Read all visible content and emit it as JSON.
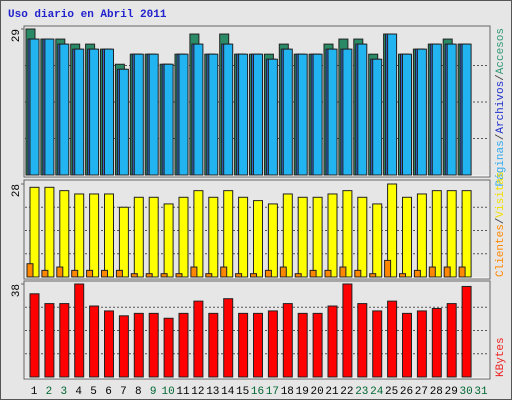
{
  "chart_data": {
    "type": "bar",
    "title": "Uso diario en Abril 2011",
    "legend_separator": "/",
    "categories": [
      "1",
      "2",
      "3",
      "4",
      "5",
      "6",
      "7",
      "8",
      "9",
      "10",
      "11",
      "12",
      "13",
      "14",
      "15",
      "16",
      "17",
      "18",
      "19",
      "20",
      "21",
      "22",
      "23",
      "24",
      "25",
      "26",
      "27",
      "28",
      "29",
      "30",
      "31"
    ],
    "category_colors": [
      "#000000",
      "#006633",
      "#006633",
      "#000000",
      "#000000",
      "#000000",
      "#000000",
      "#000000",
      "#006633",
      "#006633",
      "#000000",
      "#000000",
      "#000000",
      "#000000",
      "#000000",
      "#006633",
      "#006633",
      "#000000",
      "#000000",
      "#000000",
      "#000000",
      "#000000",
      "#006633",
      "#006633",
      "#000000",
      "#000000",
      "#000000",
      "#000000",
      "#000000",
      "#006633",
      "#006633"
    ],
    "panels": [
      {
        "ylim": [
          0,
          29
        ],
        "yticks": [
          29
        ],
        "series": [
          {
            "name": "Páginas",
            "color": "#22b4f0",
            "label_color": "#33aaee",
            "values": [
              27,
              27,
              26,
              25,
              25,
              25,
              21,
              24,
              24,
              22,
              24,
              26,
              24,
              26,
              24,
              24,
              23,
              25,
              24,
              24,
              25,
              25,
              26,
              23,
              28,
              24,
              25,
              26,
              26,
              26,
              null
            ]
          },
          {
            "name": "Archivos",
            "color": "#3066d0",
            "label_color": "#2233cc",
            "values": [
              27,
              27,
              26,
              25,
              25,
              25,
              21,
              24,
              24,
              22,
              24,
              26,
              24,
              26,
              24,
              24,
              23,
              25,
              24,
              24,
              25,
              25,
              26,
              23,
              28,
              24,
              25,
              26,
              26,
              26,
              null
            ]
          },
          {
            "name": "Accesos",
            "color": "#2a8a66",
            "label_color": "#339977",
            "values": [
              29,
              27,
              27,
              26,
              26,
              25,
              22,
              24,
              24,
              22,
              24,
              28,
              24,
              28,
              24,
              24,
              24,
              26,
              24,
              24,
              26,
              27,
              27,
              24,
              28,
              24,
              25,
              26,
              27,
              26,
              null
            ]
          }
        ]
      },
      {
        "ylim": [
          0,
          28
        ],
        "yticks": [
          28
        ],
        "series": [
          {
            "name": "Clientes",
            "color": "#ff8800",
            "label_color": "#ff8800",
            "values": [
              4,
              2,
              3,
              2,
              2,
              2,
              2,
              1,
              1,
              1,
              1,
              3,
              1,
              3,
              1,
              1,
              2,
              3,
              1,
              2,
              2,
              3,
              2,
              1,
              5,
              1,
              2,
              3,
              3,
              3,
              null
            ]
          },
          {
            "name": "Visitas",
            "color": "#ffff00",
            "label_color": "#f0e000",
            "values": [
              27,
              27,
              26,
              25,
              25,
              25,
              21,
              24,
              24,
              22,
              24,
              26,
              24,
              26,
              24,
              23,
              22,
              25,
              24,
              24,
              25,
              26,
              24,
              22,
              28,
              24,
              25,
              26,
              26,
              26,
              null
            ]
          }
        ]
      },
      {
        "ylim": [
          0,
          38
        ],
        "yticks": [
          38
        ],
        "series": [
          {
            "name": "KBytes",
            "color": "#ff0000",
            "label_color": "#ee2222",
            "values": [
              34,
              30,
              30,
              38,
              29,
              27,
              25,
              26,
              26,
              24,
              26,
              31,
              26,
              32,
              26,
              26,
              27,
              30,
              26,
              26,
              29,
              38,
              30,
              27,
              31,
              26,
              27,
              28,
              30,
              37,
              null
            ]
          }
        ]
      }
    ]
  }
}
